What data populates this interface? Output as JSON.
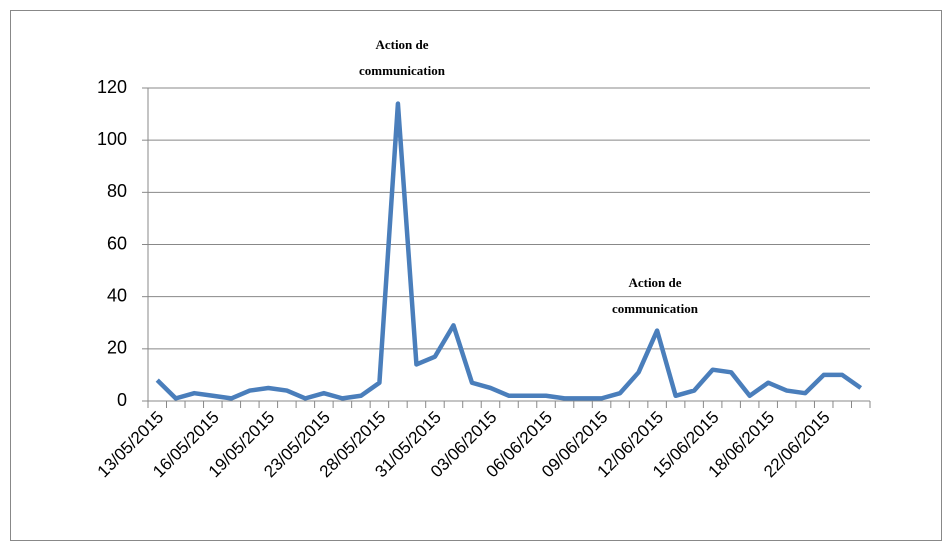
{
  "chart_data": {
    "type": "line",
    "categories": [
      "13/05/2015",
      null,
      null,
      "16/05/2015",
      null,
      null,
      "19/05/2015",
      null,
      null,
      "23/05/2015",
      null,
      null,
      "28/05/2015",
      null,
      null,
      "31/05/2015",
      null,
      null,
      "03/06/2015",
      null,
      null,
      "06/06/2015",
      null,
      null,
      "09/06/2015",
      null,
      null,
      "12/06/2015",
      null,
      null,
      "15/06/2015",
      null,
      null,
      "18/06/2015",
      null,
      null,
      "22/06/2015",
      null,
      null
    ],
    "series": [
      {
        "color": "#4a7ebb",
        "values": [
          8,
          1,
          3,
          2,
          1,
          4,
          5,
          4,
          1,
          3,
          1,
          2,
          7,
          114,
          14,
          17,
          29,
          7,
          5,
          2,
          2,
          2,
          1,
          1,
          1,
          3,
          11,
          27,
          2,
          4,
          12,
          11,
          2,
          7,
          4,
          3,
          10,
          10,
          5
        ]
      }
    ],
    "ylim": [
      0,
      120
    ],
    "yticks": [
      0,
      20,
      40,
      60,
      80,
      100,
      120
    ],
    "grid": true,
    "annotations": [
      "Action de communication",
      "Action de communication"
    ]
  }
}
